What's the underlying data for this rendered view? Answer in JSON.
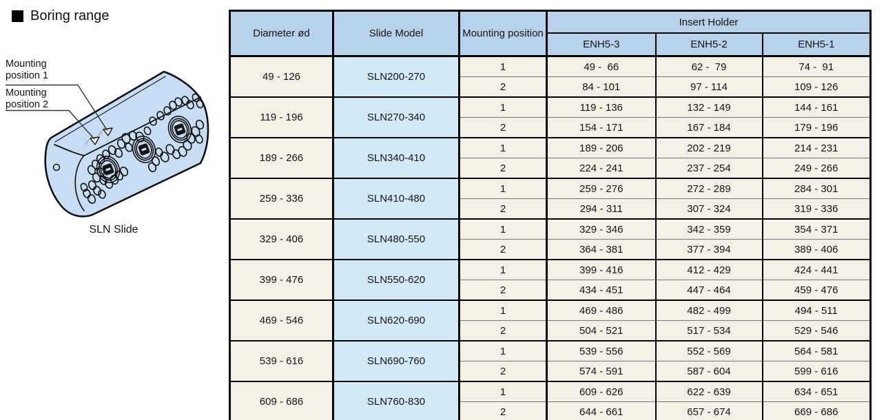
{
  "header": {
    "title": "Boring range"
  },
  "illustration": {
    "labels": {
      "mount1_line1": "Mounting",
      "mount1_line2": "position 1",
      "mount2_line1": "Mounting",
      "mount2_line2": "position 2"
    },
    "caption": "SLN Slide"
  },
  "table": {
    "headers": {
      "diameter": "Diameter ød",
      "slide_model": "Slide Model",
      "mounting_position": "Mounting position",
      "insert_holder": "Insert Holder",
      "enh_models": [
        "ENH5-3",
        "ENH5-2",
        "ENH5-1"
      ]
    },
    "groups": [
      {
        "diameter": "49 - 126",
        "model": "SLN200-270",
        "rows": [
          {
            "position": "1",
            "enh5_3": "49 -  66",
            "enh5_2": "62 -  79",
            "enh5_1": "74 -  91"
          },
          {
            "position": "2",
            "enh5_3": "84 - 101",
            "enh5_2": "97 - 114",
            "enh5_1": "109 - 126"
          }
        ]
      },
      {
        "diameter": "119 - 196",
        "model": "SLN270-340",
        "rows": [
          {
            "position": "1",
            "enh5_3": "119 - 136",
            "enh5_2": "132 - 149",
            "enh5_1": "144 - 161"
          },
          {
            "position": "2",
            "enh5_3": "154 - 171",
            "enh5_2": "167 - 184",
            "enh5_1": "179 - 196"
          }
        ]
      },
      {
        "diameter": "189 - 266",
        "model": "SLN340-410",
        "rows": [
          {
            "position": "1",
            "enh5_3": "189 - 206",
            "enh5_2": "202 - 219",
            "enh5_1": "214 - 231"
          },
          {
            "position": "2",
            "enh5_3": "224 - 241",
            "enh5_2": "237 - 254",
            "enh5_1": "249 - 266"
          }
        ]
      },
      {
        "diameter": "259 - 336",
        "model": "SLN410-480",
        "rows": [
          {
            "position": "1",
            "enh5_3": "259 - 276",
            "enh5_2": "272 - 289",
            "enh5_1": "284 - 301"
          },
          {
            "position": "2",
            "enh5_3": "294 - 311",
            "enh5_2": "307 - 324",
            "enh5_1": "319 - 336"
          }
        ]
      },
      {
        "diameter": "329 - 406",
        "model": "SLN480-550",
        "rows": [
          {
            "position": "1",
            "enh5_3": "329 - 346",
            "enh5_2": "342 - 359",
            "enh5_1": "354 - 371"
          },
          {
            "position": "2",
            "enh5_3": "364 - 381",
            "enh5_2": "377 - 394",
            "enh5_1": "389 - 406"
          }
        ]
      },
      {
        "diameter": "399 - 476",
        "model": "SLN550-620",
        "rows": [
          {
            "position": "1",
            "enh5_3": "399 - 416",
            "enh5_2": "412 - 429",
            "enh5_1": "424 - 441"
          },
          {
            "position": "2",
            "enh5_3": "434 - 451",
            "enh5_2": "447 - 464",
            "enh5_1": "459 - 476"
          }
        ]
      },
      {
        "diameter": "469 - 546",
        "model": "SLN620-690",
        "rows": [
          {
            "position": "1",
            "enh5_3": "469 - 486",
            "enh5_2": "482 - 499",
            "enh5_1": "494 - 511"
          },
          {
            "position": "2",
            "enh5_3": "504 - 521",
            "enh5_2": "517 - 534",
            "enh5_1": "529 - 546"
          }
        ]
      },
      {
        "diameter": "539 - 616",
        "model": "SLN690-760",
        "rows": [
          {
            "position": "1",
            "enh5_3": "539 - 556",
            "enh5_2": "552 - 569",
            "enh5_1": "564 - 581"
          },
          {
            "position": "2",
            "enh5_3": "574 - 591",
            "enh5_2": "587 - 604",
            "enh5_1": "599 - 616"
          }
        ]
      },
      {
        "diameter": "609 - 686",
        "model": "SLN760-830",
        "rows": [
          {
            "position": "1",
            "enh5_3": "609 - 626",
            "enh5_2": "622 - 639",
            "enh5_1": "634 - 651"
          },
          {
            "position": "2",
            "enh5_3": "644 - 661",
            "enh5_2": "657 - 674",
            "enh5_1": "669 - 686"
          }
        ]
      }
    ]
  },
  "colors": {
    "header_blue": "#b7d2ec",
    "model_blue": "#d2e9f8",
    "row_cream": "#f3f0e5",
    "illustration_blue": "#c7ddf3",
    "border": "#000000"
  }
}
